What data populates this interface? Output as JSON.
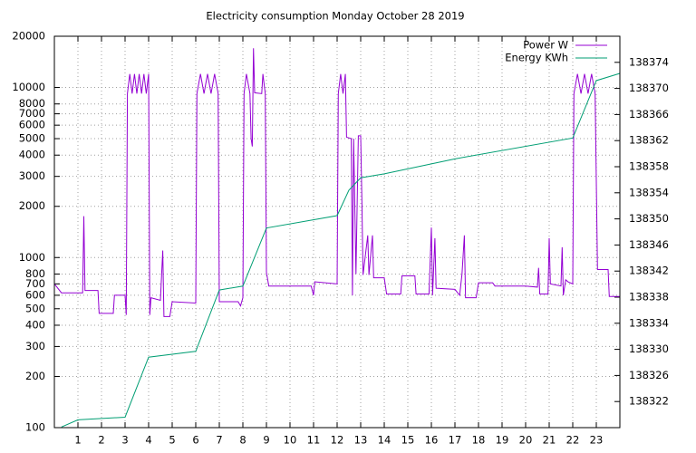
{
  "chart_data": {
    "type": "line",
    "title": "Electricity consumption Monday October 28 2019",
    "xlim": [
      0,
      24
    ],
    "xticks": [
      1,
      2,
      3,
      4,
      5,
      6,
      7,
      8,
      9,
      10,
      11,
      12,
      13,
      14,
      15,
      16,
      17,
      18,
      19,
      20,
      21,
      22,
      23
    ],
    "ylim": [
      100,
      20000
    ],
    "ylog": true,
    "yticks": [
      100,
      200,
      300,
      400,
      500,
      600,
      700,
      800,
      1000,
      2000,
      3000,
      4000,
      5000,
      6000,
      7000,
      8000,
      10000,
      20000
    ],
    "y2lim": [
      138318,
      138378
    ],
    "y2ticks": [
      138322,
      138326,
      138330,
      138334,
      138338,
      138342,
      138346,
      138350,
      138354,
      138358,
      138362,
      138366,
      138370,
      138374
    ],
    "grid": true,
    "legend": "top-right",
    "series": [
      {
        "name": "Power W",
        "color": "#9400d3",
        "x": [
          0,
          0.3,
          1.2,
          1.25,
          1.3,
          1.85,
          1.9,
          2.5,
          2.55,
          3.0,
          3.05,
          3.1,
          3.2,
          3.3,
          3.4,
          3.5,
          3.6,
          3.7,
          3.8,
          3.9,
          4.0,
          4.05,
          4.1,
          4.5,
          4.6,
          4.65,
          4.9,
          5.0,
          6.0,
          6.05,
          6.2,
          6.35,
          6.5,
          6.65,
          6.8,
          6.95,
          7.0,
          7.8,
          7.9,
          8.0,
          8.05,
          8.15,
          8.3,
          8.35,
          8.4,
          8.45,
          8.5,
          8.8,
          8.85,
          8.95,
          9.0,
          9.1,
          10.9,
          11.0,
          11.05,
          12.0,
          12.05,
          12.15,
          12.25,
          12.35,
          12.4,
          12.6,
          12.65,
          12.7,
          12.8,
          12.9,
          13.0,
          13.05,
          13.1,
          13.3,
          13.35,
          13.5,
          13.55,
          14.0,
          14.1,
          14.7,
          14.75,
          15.3,
          15.35,
          15.9,
          16.0,
          16.05,
          16.15,
          16.2,
          17.0,
          17.2,
          17.3,
          17.4,
          17.45,
          17.9,
          18.0,
          18.6,
          18.7,
          20.0,
          20.5,
          20.55,
          20.6,
          20.95,
          21.0,
          21.05,
          21.5,
          21.55,
          21.6,
          21.7,
          21.8,
          22.0,
          22.05,
          22.2,
          22.35,
          22.5,
          22.65,
          22.8,
          22.95,
          23.05,
          23.5,
          23.55,
          24
        ],
        "values": [
          700,
          620,
          620,
          1750,
          640,
          640,
          470,
          470,
          600,
          600,
          460,
          9200,
          12000,
          9200,
          12000,
          9200,
          12000,
          9200,
          12000,
          9200,
          12000,
          460,
          580,
          560,
          1100,
          450,
          450,
          550,
          540,
          9200,
          12000,
          9200,
          12000,
          9200,
          12000,
          9200,
          550,
          550,
          520,
          580,
          9200,
          12000,
          9200,
          5000,
          4500,
          17000,
          9300,
          9200,
          12000,
          9200,
          820,
          680,
          680,
          600,
          720,
          700,
          9200,
          12000,
          9200,
          12000,
          5100,
          5000,
          600,
          5000,
          800,
          5200,
          5200,
          2200,
          790,
          1350,
          790,
          1350,
          760,
          760,
          610,
          610,
          780,
          780,
          610,
          610,
          1500,
          600,
          1300,
          660,
          650,
          600,
          800,
          1350,
          580,
          580,
          710,
          710,
          680,
          680,
          670,
          870,
          610,
          610,
          1300,
          700,
          680,
          1150,
          600,
          740,
          720,
          700,
          9200,
          12000,
          9200,
          12000,
          9200,
          12000,
          9200,
          850,
          850,
          590,
          590
        ]
      },
      {
        "name": "Energy KWh",
        "color": "#009e73",
        "axis": "y2",
        "x": [
          0.3,
          1,
          3,
          4,
          6,
          7,
          8,
          9,
          12,
          12.5,
          13,
          14,
          17,
          22,
          23,
          24
        ],
        "values": [
          138318.1,
          138319.2,
          138319.6,
          138328.8,
          138329.7,
          138339.1,
          138339.7,
          138348.6,
          138350.5,
          138354.4,
          138356.3,
          138356.9,
          138359.2,
          138362.4,
          138371.2,
          138372.3
        ]
      }
    ]
  }
}
